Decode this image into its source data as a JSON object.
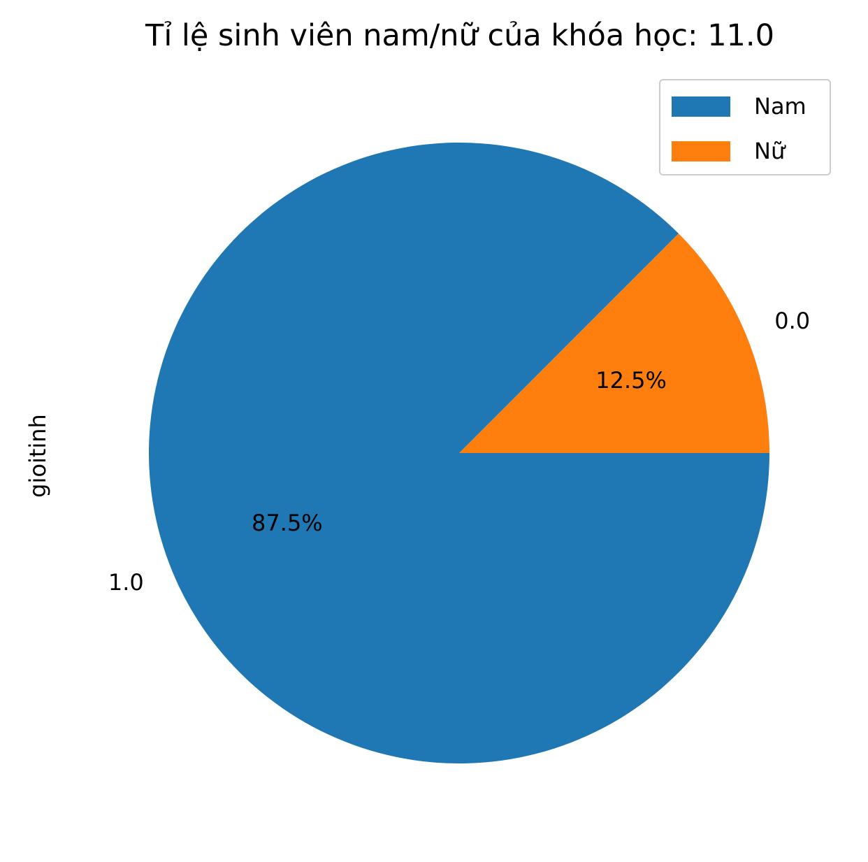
{
  "chart_data": {
    "type": "pie",
    "title": "Tỉ lệ sinh viên nam/nữ của khóa học: 11.0",
    "ylabel": "gioitinh",
    "categories": [
      "0.0",
      "1.0"
    ],
    "values": [
      12.5,
      87.5
    ],
    "autopct_labels": [
      "12.5%",
      "87.5%"
    ],
    "colors": [
      "#ff7f0e",
      "#1f77b4"
    ],
    "legend": {
      "placement": "top-right",
      "entries": [
        {
          "label": "Nam",
          "color": "#1f77b4"
        },
        {
          "label": "Nữ",
          "color": "#ff7f0e"
        }
      ]
    }
  }
}
